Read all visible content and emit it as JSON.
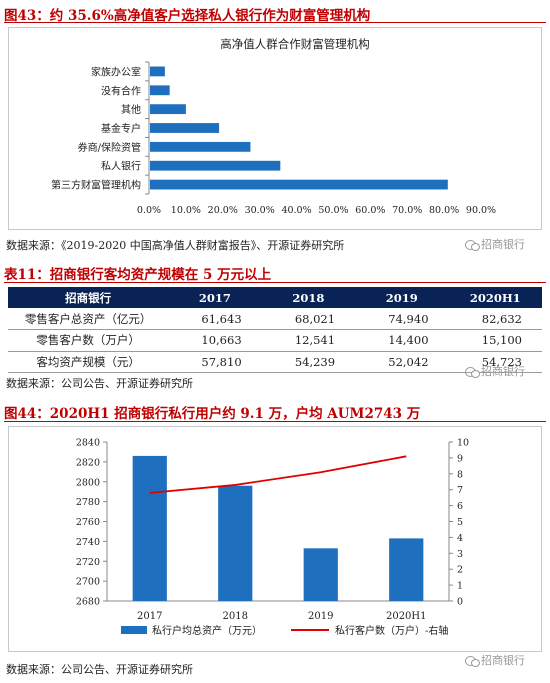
{
  "fig43": {
    "title": "图43：约 35.6%高净值客户选择私人银行作为财富管理机构",
    "source": "数据来源：《2019-2020 中国高净值人群财富报告》、开源证券研究所",
    "chart_data": {
      "type": "bar",
      "orientation": "horizontal",
      "title": "高净值人群合作财富管理机构",
      "categories": [
        "家族办公室",
        "没有合作",
        "其他",
        "基金专户",
        "券商/保险资管",
        "私人银行",
        "第三方财富管理机构"
      ],
      "values": [
        0.043,
        0.056,
        0.1,
        0.19,
        0.275,
        0.356,
        0.81
      ],
      "xlim": [
        0,
        0.9
      ],
      "xticks": [
        "0.0%",
        "10.0%",
        "20.0%",
        "30.0%",
        "40.0%",
        "50.0%",
        "60.0%",
        "70.0%",
        "80.0%",
        "90.0%"
      ],
      "color": "#1f6fbf"
    }
  },
  "table11": {
    "title": "表11：招商银行客均资产规模在 5 万元以上",
    "headers": [
      "招商银行",
      "2017",
      "2018",
      "2019",
      "2020H1"
    ],
    "rows": [
      [
        "零售客户总资产（亿元）",
        "61,643",
        "68,021",
        "74,940",
        "82,632"
      ],
      [
        "零售客户数（万户）",
        "10,663",
        "12,541",
        "14,400",
        "15,100"
      ],
      [
        "客均资产规模（元）",
        "57,810",
        "54,239",
        "52,042",
        "54,723"
      ]
    ],
    "source": "数据来源：公司公告、开源证券研究所"
  },
  "fig44": {
    "title": "图44：2020H1 招商银行私行用户约 9.1 万，户均 AUM2743 万",
    "source": "数据来源：公司公告、开源证券研究所",
    "chart_data": {
      "type": "bar+line",
      "categories": [
        "2017",
        "2018",
        "2019",
        "2020H1"
      ],
      "series": [
        {
          "name": "私行户均总资产（万元）",
          "type": "bar",
          "axis": "left",
          "values": [
            2826,
            2796,
            2733,
            2743
          ],
          "color": "#1f6fbf"
        },
        {
          "name": "私行客户数（万户）-右轴",
          "type": "line",
          "axis": "right",
          "values": [
            6.8,
            7.3,
            8.1,
            9.1
          ],
          "color": "#e00000"
        }
      ],
      "ylim_left": [
        2680,
        2840
      ],
      "yticks_left": [
        "2680",
        "2700",
        "2720",
        "2740",
        "2760",
        "2780",
        "2800",
        "2820",
        "2840"
      ],
      "ylim_right": [
        0,
        10
      ],
      "yticks_right": [
        "0",
        "1",
        "2",
        "3",
        "4",
        "5",
        "6",
        "7",
        "8",
        "9",
        "10"
      ],
      "legend_position": "bottom"
    }
  },
  "watermark": "招商银行"
}
